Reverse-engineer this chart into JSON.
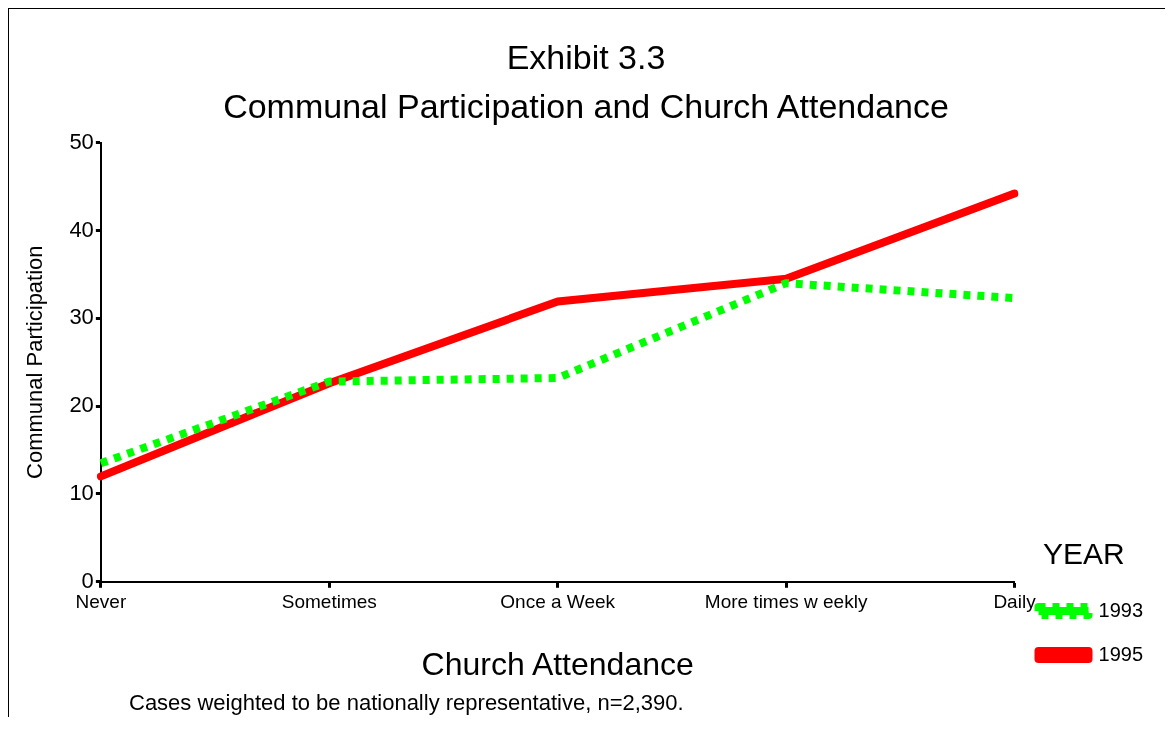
{
  "chart_data": {
    "type": "line",
    "title": "Exhibit 3.3",
    "subtitle": "Communal Participation and Church Attendance",
    "xlabel": "Church Attendance",
    "ylabel": "Communal Participation",
    "legend_title": "YEAR",
    "categories": [
      "Never",
      "Sometimes",
      "Once a Week",
      "More times w eekly",
      "Daily"
    ],
    "series": [
      {
        "name": "1993",
        "color": "#00ff00",
        "line_style": "dotted",
        "values": [
          13.5,
          22.8,
          23.2,
          34,
          32.3
        ]
      },
      {
        "name": "1995",
        "color": "#ff0000",
        "line_style": "solid",
        "values": [
          12,
          22.6,
          31.9,
          34.5,
          44.2
        ]
      }
    ],
    "ylim": [
      0,
      50
    ],
    "yticks": [
      0,
      10,
      20,
      30,
      40,
      50
    ],
    "grid": false,
    "legend": "right",
    "marker": "none",
    "annotations": [
      "Cases weighted to be nationally representative, n=2,390."
    ]
  }
}
